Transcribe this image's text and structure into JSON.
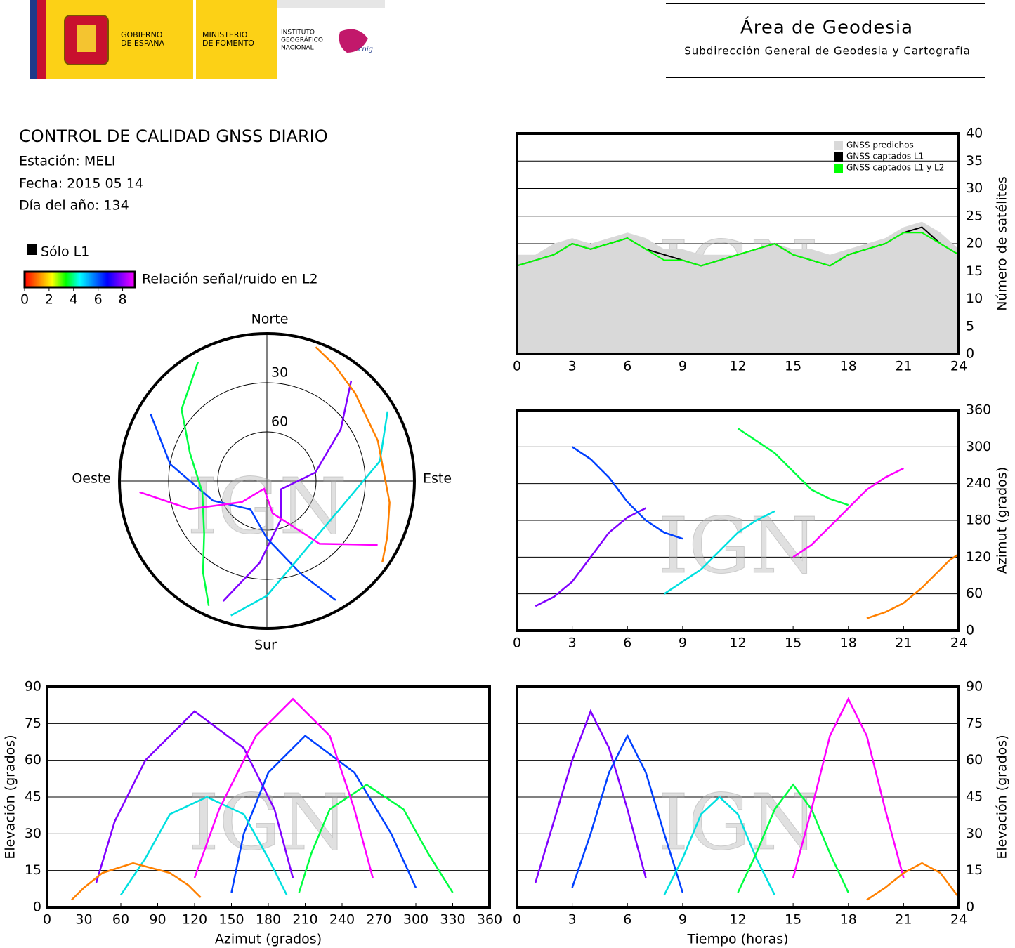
{
  "header": {
    "gov": [
      "GOBIERNO",
      "DE ESPAÑA"
    ],
    "ministry": [
      "MINISTERIO",
      "DE FOMENTO"
    ],
    "institute": [
      "INSTITUTO",
      "GEOGRÁFICO",
      "NACIONAL"
    ],
    "cnig": "cnig",
    "area": "Área de Geodesia",
    "subdireccion": "Subdirección General de Geodesia y Cartografía"
  },
  "info": {
    "title": "CONTROL DE CALIDAD GNSS DIARIO",
    "station": "Estación: MELI",
    "date": "Fecha: 2015 05 14",
    "doy": "Día del año: 134",
    "l1_only": "Sólo L1",
    "l1_only_color": "#000000"
  },
  "colorbar": {
    "label": "Relación señal/ruido en L2",
    "lim": [
      0,
      9
    ],
    "ticks": [
      0,
      2,
      4,
      6,
      8
    ],
    "colors": [
      "#ff0000",
      "#ff8000",
      "#ffff00",
      "#00ff00",
      "#00ffff",
      "#0080ff",
      "#0000ff",
      "#8000ff",
      "#ff00ff"
    ]
  },
  "watermark": "IGN",
  "chart_data": [
    {
      "type": "line",
      "ylabel": "Número de satélites",
      "yaxis_side": "right",
      "xlim": [
        0,
        24
      ],
      "xticks": [
        0,
        3,
        6,
        9,
        12,
        15,
        18,
        21,
        24
      ],
      "ylim": [
        0,
        40
      ],
      "yticks": [
        0,
        5,
        10,
        15,
        20,
        25,
        30,
        35,
        40
      ],
      "grid": true,
      "legend": "upper right",
      "x": [
        0,
        1,
        2,
        3,
        4,
        5,
        6,
        7,
        8,
        9,
        10,
        11,
        12,
        13,
        14,
        15,
        16,
        17,
        18,
        19,
        20,
        21,
        22,
        23,
        24
      ],
      "series": [
        {
          "name": "GNSS predichos",
          "color": "#d9d9d9",
          "fill": true,
          "values": [
            18,
            18,
            20,
            21,
            20,
            21,
            22,
            21,
            19,
            19,
            18,
            18,
            18,
            19,
            20,
            19,
            19,
            18,
            19,
            20,
            21,
            23,
            24,
            22,
            19
          ]
        },
        {
          "name": "GNSS captados L1",
          "color": "#000000",
          "values": [
            16,
            17,
            18,
            20,
            19,
            20,
            21,
            19,
            18,
            17,
            16,
            17,
            18,
            19,
            20,
            18,
            17,
            16,
            18,
            19,
            20,
            22,
            23,
            20,
            18
          ]
        },
        {
          "name": "GNSS captados L1 y L2",
          "color": "#00ff00",
          "values": [
            16,
            17,
            18,
            20,
            19,
            20,
            21,
            19,
            17,
            17,
            16,
            17,
            18,
            19,
            20,
            18,
            17,
            16,
            18,
            19,
            20,
            22,
            22,
            20,
            18
          ]
        }
      ]
    },
    {
      "type": "polar",
      "north": "Norte",
      "south": "Sur",
      "east": "Este",
      "west": "Oeste",
      "rlim": [
        90,
        0
      ],
      "rticks": [
        30,
        60
      ],
      "series": [
        {
          "color": "#8000ff",
          "az": [
            40,
            55,
            80,
            120,
            160,
            185,
            200
          ],
          "el": [
            10,
            35,
            60,
            80,
            65,
            40,
            12
          ]
        },
        {
          "color": "#0040ff",
          "az": [
            300,
            280,
            250,
            210,
            180,
            160,
            150
          ],
          "el": [
            8,
            30,
            55,
            70,
            55,
            30,
            6
          ]
        },
        {
          "color": "#00e0e0",
          "az": [
            60,
            80,
            100,
            130,
            160,
            180,
            195
          ],
          "el": [
            5,
            20,
            38,
            45,
            38,
            20,
            5
          ]
        },
        {
          "color": "#00ff40",
          "az": [
            330,
            310,
            290,
            260,
            230,
            215,
            205
          ],
          "el": [
            6,
            22,
            40,
            50,
            40,
            22,
            6
          ]
        },
        {
          "color": "#ff00ff",
          "az": [
            120,
            140,
            170,
            200,
            230,
            250,
            265
          ],
          "el": [
            12,
            40,
            70,
            85,
            70,
            40,
            12
          ]
        },
        {
          "color": "#ff8000",
          "az": [
            20,
            30,
            45,
            70,
            100,
            115,
            125
          ],
          "el": [
            3,
            8,
            14,
            18,
            14,
            9,
            4
          ]
        }
      ]
    },
    {
      "type": "scatter",
      "ylabel": "Azimut (grados)",
      "yaxis_side": "right",
      "xlim": [
        0,
        24
      ],
      "xticks": [
        0,
        3,
        6,
        9,
        12,
        15,
        18,
        21,
        24
      ],
      "ylim": [
        0,
        360
      ],
      "yticks": [
        0,
        60,
        120,
        180,
        240,
        300,
        360
      ],
      "grid": true,
      "series": [
        {
          "color": "#8000ff",
          "x": [
            1,
            2,
            3,
            4,
            5,
            6,
            7
          ],
          "values": [
            40,
            55,
            80,
            120,
            160,
            185,
            200
          ]
        },
        {
          "color": "#0040ff",
          "x": [
            3,
            4,
            5,
            6,
            7,
            8,
            9
          ],
          "values": [
            300,
            280,
            250,
            210,
            180,
            160,
            150
          ]
        },
        {
          "color": "#00e0e0",
          "x": [
            8,
            9,
            10,
            11,
            12,
            13,
            14
          ],
          "values": [
            60,
            80,
            100,
            130,
            160,
            180,
            195
          ]
        },
        {
          "color": "#00ff40",
          "x": [
            12,
            13,
            14,
            15,
            16,
            17,
            18
          ],
          "values": [
            330,
            310,
            290,
            260,
            230,
            215,
            205
          ]
        },
        {
          "color": "#ff00ff",
          "x": [
            15,
            16,
            17,
            18,
            19,
            20,
            21
          ],
          "values": [
            120,
            140,
            170,
            200,
            230,
            250,
            265
          ]
        },
        {
          "color": "#ff8000",
          "x": [
            19,
            20,
            21,
            22,
            23,
            23.5,
            24
          ],
          "values": [
            20,
            30,
            45,
            70,
            100,
            115,
            125
          ]
        }
      ]
    },
    {
      "type": "scatter",
      "xlabel": "Azimut (grados)",
      "ylabel": "Elevación (grados)",
      "yaxis_side": "left",
      "xlim": [
        0,
        360
      ],
      "xticks": [
        0,
        30,
        60,
        90,
        120,
        150,
        180,
        210,
        240,
        270,
        300,
        330,
        360
      ],
      "ylim": [
        0,
        90
      ],
      "yticks": [
        0,
        15,
        30,
        45,
        60,
        75,
        90
      ],
      "grid": true,
      "series": [
        {
          "color": "#8000ff",
          "x": [
            40,
            55,
            80,
            120,
            160,
            185,
            200
          ],
          "values": [
            10,
            35,
            60,
            80,
            65,
            40,
            12
          ]
        },
        {
          "color": "#0040ff",
          "x": [
            300,
            280,
            250,
            210,
            180,
            160,
            150
          ],
          "values": [
            8,
            30,
            55,
            70,
            55,
            30,
            6
          ]
        },
        {
          "color": "#00e0e0",
          "x": [
            60,
            80,
            100,
            130,
            160,
            180,
            195
          ],
          "values": [
            5,
            20,
            38,
            45,
            38,
            20,
            5
          ]
        },
        {
          "color": "#00ff40",
          "x": [
            330,
            310,
            290,
            260,
            230,
            215,
            205
          ],
          "values": [
            6,
            22,
            40,
            50,
            40,
            22,
            6
          ]
        },
        {
          "color": "#ff00ff",
          "x": [
            120,
            140,
            170,
            200,
            230,
            250,
            265
          ],
          "values": [
            12,
            40,
            70,
            85,
            70,
            40,
            12
          ]
        },
        {
          "color": "#ff8000",
          "x": [
            20,
            30,
            45,
            70,
            100,
            115,
            125
          ],
          "values": [
            3,
            8,
            14,
            18,
            14,
            9,
            4
          ]
        }
      ]
    },
    {
      "type": "scatter",
      "xlabel": "Tiempo (horas)",
      "ylabel": "Elevación (grados)",
      "yaxis_side": "right",
      "xlim": [
        0,
        24
      ],
      "xticks": [
        0,
        3,
        6,
        9,
        12,
        15,
        18,
        21,
        24
      ],
      "ylim": [
        0,
        90
      ],
      "yticks": [
        0,
        15,
        30,
        45,
        60,
        75,
        90
      ],
      "grid": true,
      "series": [
        {
          "color": "#8000ff",
          "x": [
            1,
            2,
            3,
            4,
            5,
            6,
            7
          ],
          "values": [
            10,
            35,
            60,
            80,
            65,
            40,
            12
          ]
        },
        {
          "color": "#0040ff",
          "x": [
            3,
            4,
            5,
            6,
            7,
            8,
            9
          ],
          "values": [
            8,
            30,
            55,
            70,
            55,
            30,
            6
          ]
        },
        {
          "color": "#00e0e0",
          "x": [
            8,
            9,
            10,
            11,
            12,
            13,
            14
          ],
          "values": [
            5,
            20,
            38,
            45,
            38,
            20,
            5
          ]
        },
        {
          "color": "#00ff40",
          "x": [
            12,
            13,
            14,
            15,
            16,
            17,
            18
          ],
          "values": [
            6,
            22,
            40,
            50,
            40,
            22,
            6
          ]
        },
        {
          "color": "#ff00ff",
          "x": [
            15,
            16,
            17,
            18,
            19,
            20,
            21
          ],
          "values": [
            12,
            40,
            70,
            85,
            70,
            40,
            12
          ]
        },
        {
          "color": "#ff8000",
          "x": [
            19,
            20,
            21,
            22,
            23,
            23.5,
            24
          ],
          "values": [
            3,
            8,
            14,
            18,
            14,
            9,
            4
          ]
        }
      ]
    }
  ]
}
